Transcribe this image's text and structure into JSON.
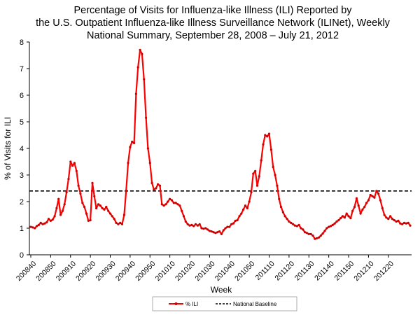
{
  "chart_data": {
    "type": "line",
    "title": [
      "Percentage of Visits for Influenza-like Illness (ILI) Reported by",
      "the U.S. Outpatient Influenza-like Illness Surveillance Network (ILINet), Weekly",
      "National Summary, September 28, 2008 – July 21, 2012"
    ],
    "xlabel": "Week",
    "ylabel": "% of Visits for ILI",
    "ylim": [
      0,
      8
    ],
    "yticks": [
      0,
      1,
      2,
      3,
      4,
      5,
      6,
      7,
      8
    ],
    "xtick_labels": [
      "200840",
      "200850",
      "200910",
      "200920",
      "200930",
      "200940",
      "200950",
      "201010",
      "201020",
      "201030",
      "201040",
      "201050",
      "201110",
      "201120",
      "201130",
      "201140",
      "201150",
      "201210",
      "201220"
    ],
    "x_tick_every_weeks": 10,
    "series": [
      {
        "name": "% ILI",
        "color": "#ff0000",
        "marker_color": "#cc0000",
        "values": [
          1.05,
          1.03,
          1.0,
          1.08,
          1.12,
          1.2,
          1.15,
          1.18,
          1.22,
          1.35,
          1.28,
          1.32,
          1.45,
          1.75,
          2.1,
          1.5,
          1.65,
          1.9,
          2.35,
          2.85,
          3.5,
          3.35,
          3.45,
          3.15,
          2.6,
          2.3,
          1.95,
          1.8,
          1.55,
          1.28,
          1.3,
          2.7,
          2.2,
          1.75,
          1.9,
          1.85,
          1.75,
          1.7,
          1.8,
          1.65,
          1.55,
          1.45,
          1.35,
          1.2,
          1.15,
          1.2,
          1.15,
          1.5,
          2.4,
          3.45,
          4.05,
          4.25,
          4.2,
          6.05,
          7.05,
          7.7,
          7.55,
          6.6,
          5.15,
          4.0,
          3.45,
          2.7,
          2.45,
          2.5,
          2.65,
          2.6,
          1.9,
          1.85,
          1.9,
          2.0,
          2.1,
          2.05,
          1.95,
          1.95,
          1.9,
          1.85,
          1.65,
          1.45,
          1.25,
          1.15,
          1.1,
          1.12,
          1.08,
          1.15,
          1.1,
          1.15,
          1.0,
          0.98,
          1.0,
          0.95,
          0.9,
          0.88,
          0.85,
          0.82,
          0.85,
          0.88,
          0.78,
          0.92,
          1.0,
          1.05,
          1.05,
          1.15,
          1.18,
          1.28,
          1.3,
          1.45,
          1.55,
          1.7,
          1.85,
          1.75,
          2.0,
          2.35,
          3.05,
          3.15,
          2.6,
          2.95,
          3.55,
          4.15,
          4.5,
          4.45,
          4.55,
          3.95,
          3.3,
          3.0,
          2.6,
          2.1,
          1.8,
          1.6,
          1.45,
          1.35,
          1.25,
          1.2,
          1.15,
          1.1,
          1.08,
          1.12,
          1.0,
          0.95,
          0.85,
          0.82,
          0.78,
          0.78,
          0.72,
          0.6,
          0.62,
          0.65,
          0.72,
          0.8,
          0.9,
          1.0,
          1.05,
          1.08,
          1.12,
          1.18,
          1.25,
          1.3,
          1.38,
          1.45,
          1.4,
          1.55,
          1.45,
          1.38,
          1.65,
          1.8,
          2.12,
          1.85,
          1.55,
          1.7,
          1.8,
          1.95,
          2.05,
          2.25,
          2.2,
          2.15,
          2.4,
          2.3,
          2.05,
          1.75,
          1.5,
          1.4,
          1.35,
          1.45,
          1.35,
          1.3,
          1.25,
          1.28,
          1.18,
          1.15,
          1.2,
          1.18,
          1.2,
          1.1
        ]
      },
      {
        "name": "National Baseline",
        "color": "#000000",
        "style": "dashed",
        "value": 2.4
      }
    ],
    "legend_position": "bottom",
    "grid": false
  }
}
